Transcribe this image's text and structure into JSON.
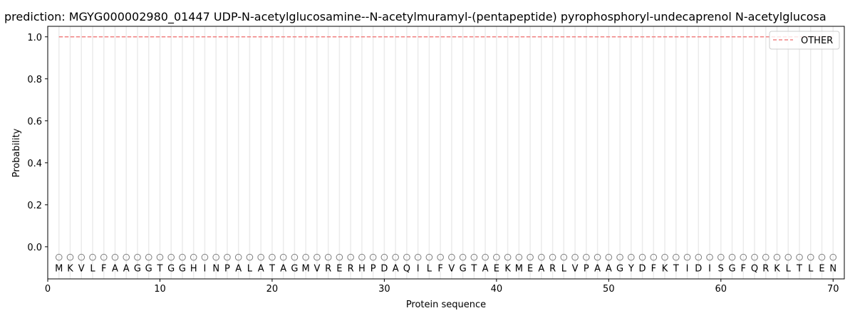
{
  "chart_data": {
    "type": "line",
    "title": "prediction: MGYG000002980_01447 UDP-N-acetylglucosamine--N-acetylmuramyl-(pentapeptide) pyrophosphoryl-undecaprenol N-acetylglucosa",
    "xlabel": "Protein sequence",
    "ylabel": "Probability",
    "xlim": [
      0,
      71
    ],
    "ylim": [
      -0.153,
      1.05
    ],
    "xticks": [
      0,
      10,
      20,
      30,
      40,
      50,
      60,
      70
    ],
    "yticks": [
      0.0,
      0.2,
      0.4,
      0.6,
      0.8,
      1.0
    ],
    "ytick_labels": [
      "0.0",
      "0.2",
      "0.4",
      "0.6",
      "0.8",
      "1.0"
    ],
    "grid": "vertical lines at each residue",
    "legend_position": "top-right",
    "sequence": "MKVLFAAGGTGGHINPALATAGMVRERHPDAQILFVGTAEKMEARLVPAAGYDFKTIDISGFQRKLTLEN",
    "marker_y": -0.05,
    "series": [
      {
        "name": "OTHER",
        "color": "#f08080",
        "style": "dashed",
        "x_start": 1,
        "x_end": 70,
        "value": 1.0
      }
    ]
  }
}
